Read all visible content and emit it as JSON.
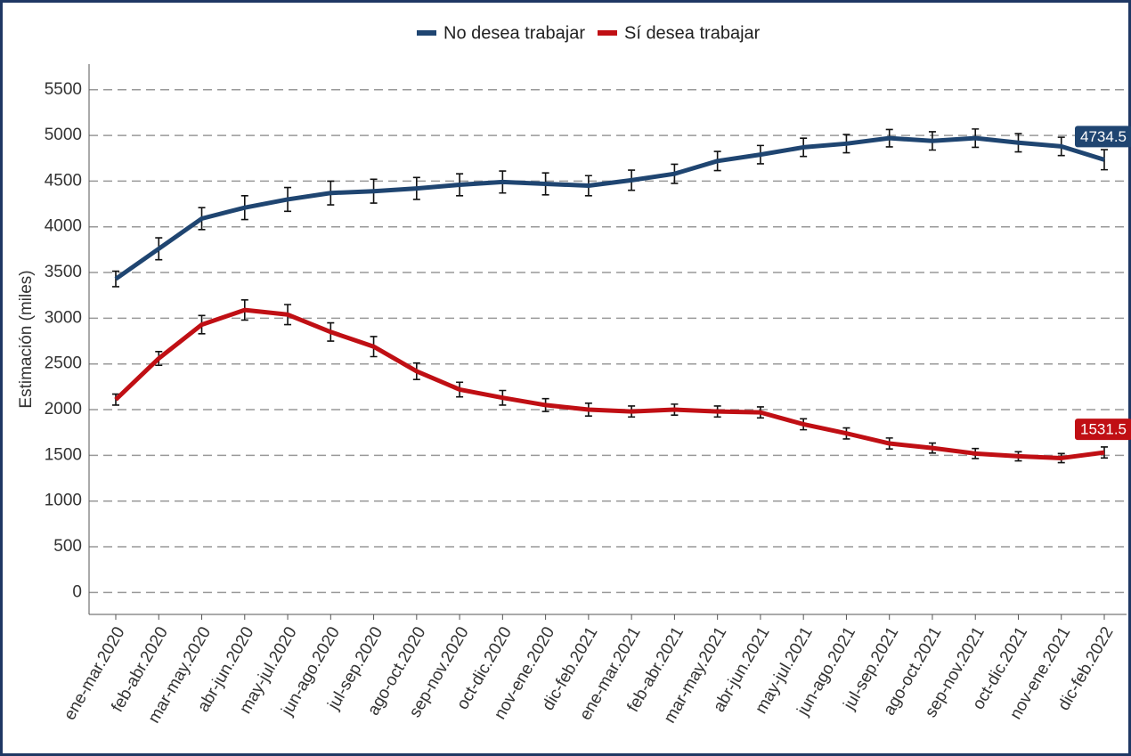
{
  "chart_data": {
    "type": "line",
    "y_label": "Estimación (miles)",
    "categories": [
      "ene-mar.2020",
      "feb-abr.2020",
      "mar-may.2020",
      "abr-jun.2020",
      "may-jul.2020",
      "jun-ago.2020",
      "jul-sep.2020",
      "ago-oct.2020",
      "sep-nov.2020",
      "oct-dic.2020",
      "nov-ene.2020",
      "dic-feb.2021",
      "ene-mar.2021",
      "feb-abr.2021",
      "mar-may.2021",
      "abr-jun.2021",
      "may-jul.2021",
      "jun-ago.2021",
      "jul-sep.2021",
      "ago-oct.2021",
      "sep-nov.2021",
      "oct-dic.2021",
      "nov-ene.2021",
      "dic-feb.2022"
    ],
    "series": [
      {
        "name": "No desea trabajar",
        "color": "#1f4571",
        "values": [
          3430,
          3760,
          4090,
          4210,
          4300,
          4370,
          4390,
          4420,
          4460,
          4490,
          4470,
          4450,
          4510,
          4580,
          4720,
          4790,
          4870,
          4910,
          4970,
          4940,
          4970,
          4920,
          4880,
          4734.5
        ],
        "errors": [
          85,
          120,
          120,
          130,
          130,
          130,
          130,
          120,
          120,
          120,
          120,
          110,
          110,
          105,
          105,
          100,
          100,
          100,
          95,
          100,
          100,
          100,
          100,
          110
        ]
      },
      {
        "name": "Sí desea trabajar",
        "color": "#c00f14",
        "values": [
          2110,
          2560,
          2930,
          3090,
          3040,
          2850,
          2690,
          2420,
          2220,
          2130,
          2050,
          2000,
          1980,
          2000,
          1980,
          1970,
          1840,
          1740,
          1630,
          1580,
          1520,
          1490,
          1470,
          1531.5
        ],
        "errors": [
          60,
          75,
          100,
          110,
          110,
          100,
          110,
          90,
          80,
          80,
          70,
          70,
          60,
          60,
          60,
          60,
          60,
          60,
          60,
          55,
          55,
          50,
          50,
          60
        ]
      }
    ],
    "ylim": [
      -240,
      5780
    ],
    "yticks": [
      0,
      500,
      1000,
      1500,
      2000,
      2500,
      3000,
      3500,
      4000,
      4500,
      5000,
      5500
    ],
    "grid": true
  }
}
